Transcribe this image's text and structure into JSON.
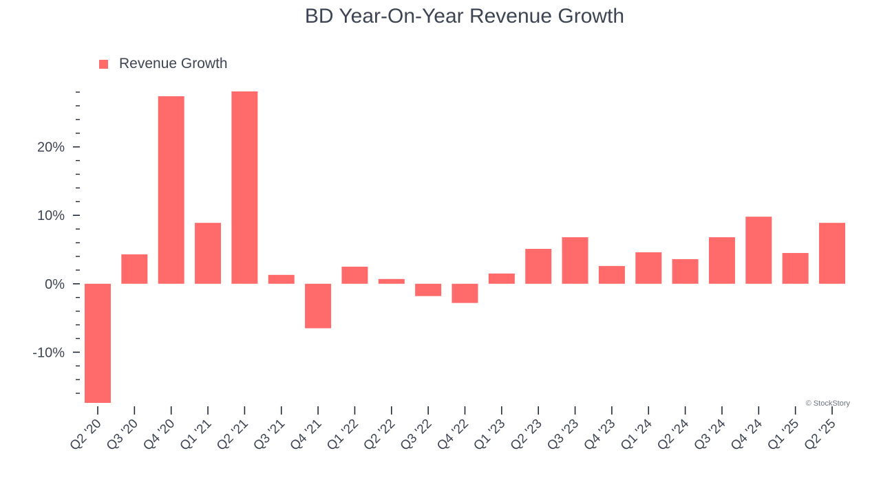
{
  "chart_data": {
    "type": "bar",
    "title": "BD Year-On-Year Revenue Growth",
    "xlabel": "",
    "ylabel": "",
    "categories": [
      "Q2 '20",
      "Q3 '20",
      "Q4 '20",
      "Q1 '21",
      "Q2 '21",
      "Q3 '21",
      "Q4 '21",
      "Q1 '22",
      "Q2 '22",
      "Q3 '22",
      "Q4 '22",
      "Q1 '23",
      "Q2 '23",
      "Q3 '23",
      "Q4 '23",
      "Q1 '24",
      "Q2 '24",
      "Q3 '24",
      "Q4 '24",
      "Q1 '25",
      "Q2 '25"
    ],
    "series": [
      {
        "name": "Revenue Growth",
        "color": "#ff6b6b",
        "values": [
          -17.4,
          4.3,
          27.4,
          8.9,
          28.1,
          1.3,
          -6.5,
          2.5,
          0.7,
          -1.8,
          -2.8,
          1.5,
          5.1,
          6.8,
          2.6,
          4.6,
          3.6,
          6.8,
          9.8,
          4.5,
          8.9
        ]
      }
    ],
    "ylim": [
      -17.4,
      28.1
    ],
    "yticks": [
      {
        "value": 20,
        "label": "20%"
      },
      {
        "value": 10,
        "label": "10%"
      },
      {
        "value": 0,
        "label": "0%"
      },
      {
        "value": -10,
        "label": "-10%"
      }
    ],
    "minor_tick_step": 2,
    "legend_position": "top-left",
    "grid": false
  },
  "watermark": "© StockStory"
}
